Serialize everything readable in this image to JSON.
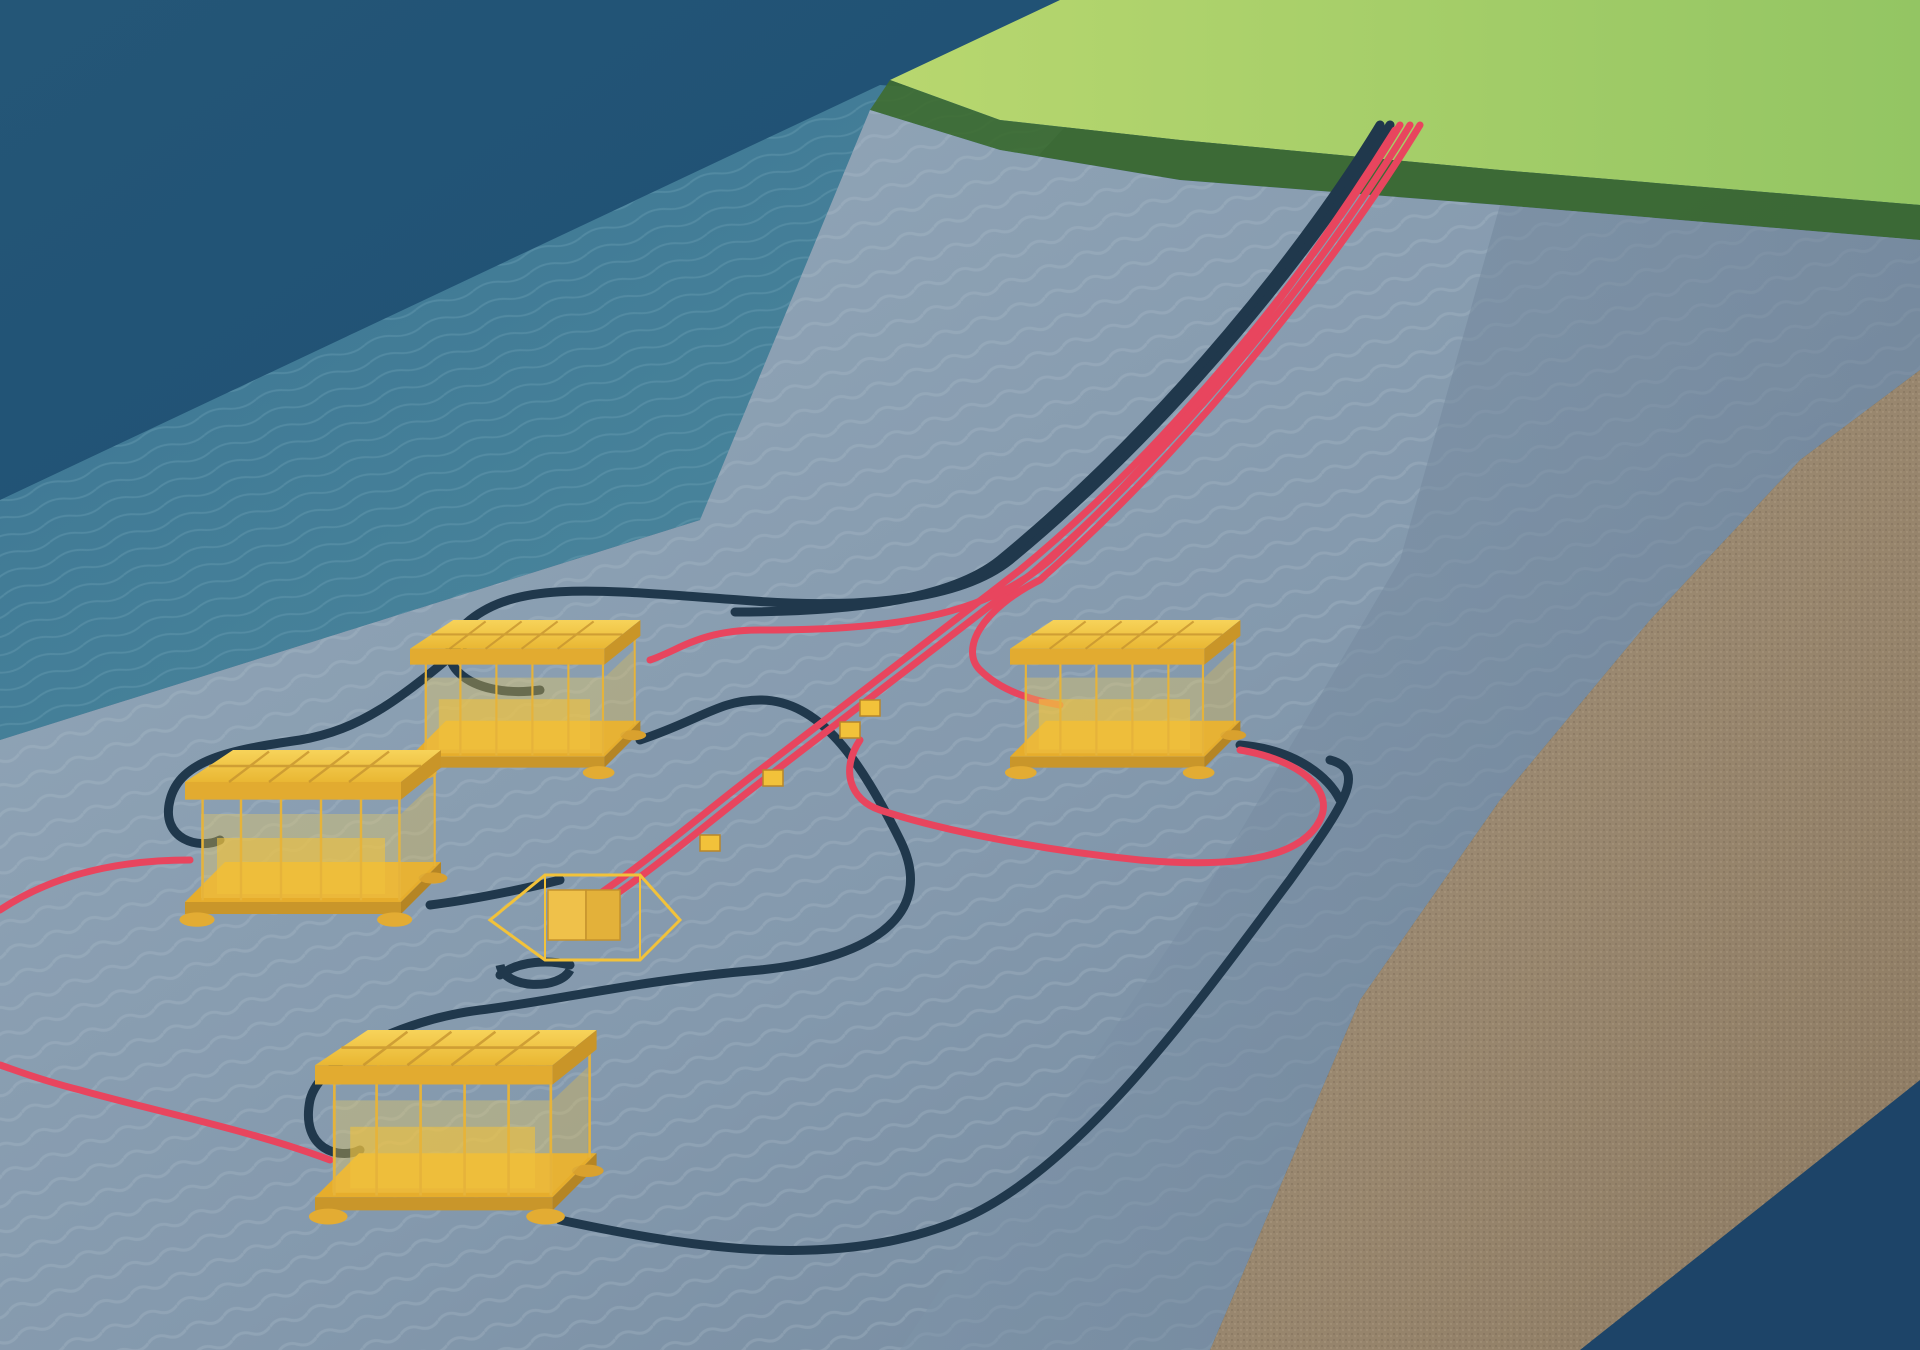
{
  "scene": {
    "subject": "subsea-field-layout-render",
    "colors": {
      "deep_water": "#1c4a6e",
      "water_mid": "#3f7594",
      "seabed": "#8ea2b4",
      "seabed_dark": "#6f8499",
      "land_top": "#a8d06a",
      "land_edge": "#3d6a2e",
      "soil_section": "#9c8a72",
      "power_cable": "#e8455e",
      "control_umbilical": "#20384c",
      "module_yellow": "#f2c23a",
      "module_shadow": "#c9962a"
    },
    "objects": {
      "modules": [
        {
          "name": "subsea-module-upper-left"
        },
        {
          "name": "subsea-module-upper-right"
        },
        {
          "name": "subsea-module-middle-left"
        },
        {
          "name": "subsea-module-lower"
        }
      ],
      "hub": {
        "name": "subsea-distribution-hub"
      },
      "connectors": [
        "inline-connector-1",
        "inline-connector-2",
        "inline-connector-3",
        "inline-connector-4"
      ]
    }
  }
}
